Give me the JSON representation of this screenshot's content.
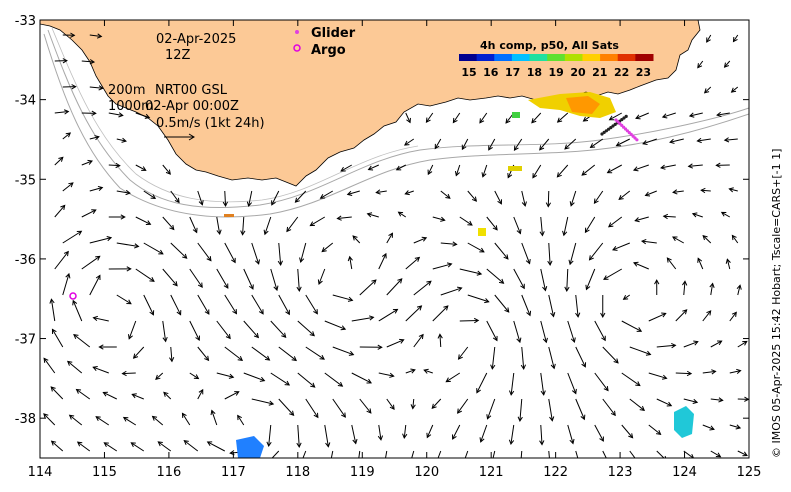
{
  "map": {
    "x_ticks": [
      "114",
      "115",
      "116",
      "117",
      "118",
      "119",
      "120",
      "121",
      "122",
      "123",
      "124",
      "125"
    ],
    "y_ticks": [
      "-33",
      "-34",
      "-35",
      "-36",
      "-37",
      "-38"
    ],
    "lon_range": [
      114,
      125
    ],
    "lat_range": [
      -38.5,
      -33
    ]
  },
  "annotations": {
    "date": "02-Apr-2025",
    "hour": "12Z",
    "depth1": "200m",
    "depth2": "1000m",
    "product": "NRT00 GSL",
    "product_time": "02-Apr 00:00Z",
    "scale": "0.5m/s (1kt 24h)"
  },
  "legend": {
    "glider_label": "Glider",
    "argo_label": "Argo",
    "glider_color": "#e040e0",
    "argo_color": "#e000e0"
  },
  "colorbar": {
    "title": "4h comp, p50, All Sats",
    "labels": [
      "15",
      "16",
      "17",
      "18",
      "19",
      "20",
      "21",
      "22",
      "23"
    ],
    "colors": [
      "#00008f",
      "#0020d0",
      "#0070ff",
      "#00c0ff",
      "#20e0a0",
      "#60e030",
      "#b0e000",
      "#ffd000",
      "#ff8000",
      "#e03000",
      "#a00000"
    ]
  },
  "credit": "© IMOS 05-Apr-2025 15:42 Hobart; Tscale=CARS+[-1 1]",
  "land_color": "#fcc996"
}
